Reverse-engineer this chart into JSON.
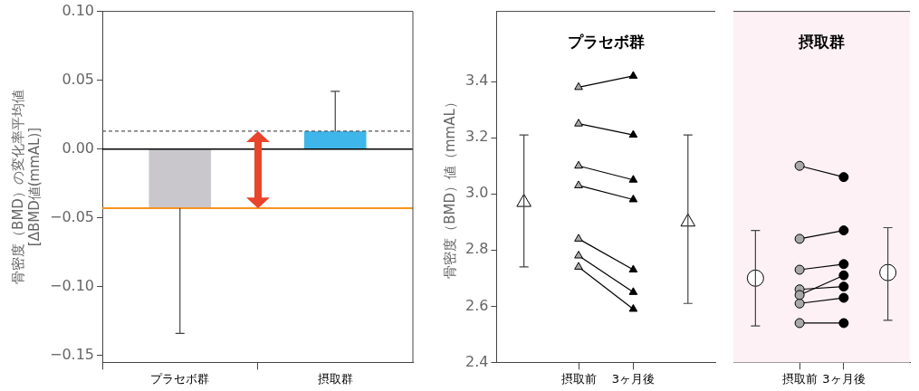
{
  "chart_data": [
    {
      "type": "bar",
      "ylabel": "骨密度（BMD）の変化率平均値\n[ΔBMD値(mmAL)]",
      "categories": [
        "プラセボ群",
        "摂取群"
      ],
      "values": [
        -0.043,
        0.013
      ],
      "colors": [
        "#c9c7cc",
        "#3fb6ea"
      ],
      "errors": [
        [
          -0.134,
          -0.043
        ],
        [
          0.013,
          0.042
        ]
      ],
      "ylim": [
        -0.155,
        0.1
      ],
      "yticks": [
        {
          "value": 0.1,
          "label": "0.10"
        },
        {
          "value": 0.05,
          "label": "0.05"
        },
        {
          "value": 0,
          "label": "0.00"
        },
        {
          "value": -0.05,
          "label": "−0.05"
        },
        {
          "value": -0.1,
          "label": "−0.10"
        },
        {
          "value": -0.15,
          "label": "−0.15"
        }
      ],
      "ref_lines": [
        {
          "axis": "y",
          "value": 0,
          "color": "#000000",
          "line_style": "solid"
        },
        {
          "axis": "y",
          "value": 0.013,
          "color": "#555555",
          "line_style": "dashed"
        },
        {
          "axis": "y",
          "value": -0.043,
          "color": "#f7931e",
          "line_style": "solid"
        }
      ]
    },
    {
      "type": "line",
      "title": "プラセボ群",
      "ylabel": "骨密度（BMD）値（mmAL）",
      "categories": [
        null,
        "摂取前",
        "3ヶ月後",
        null
      ],
      "ylim": [
        2.4,
        3.65
      ],
      "yticks": [
        {
          "value": 2.4,
          "label": "2.4"
        },
        {
          "value": 2.6,
          "label": "2.6"
        },
        {
          "value": 2.8,
          "label": "2.8"
        },
        {
          "value": 3.0,
          "label": "3.0"
        },
        {
          "value": 3.2,
          "label": "3.2"
        },
        {
          "value": 3.4,
          "label": "3.4"
        }
      ],
      "series": [
        {
          "type": "line",
          "marker": "triangle",
          "color": "#000000",
          "colors": [
            null,
            "#a8a8a8",
            "#000000",
            null
          ],
          "values": [
            null,
            3.38,
            3.42,
            null
          ]
        },
        {
          "type": "line",
          "marker": "triangle",
          "color": "#000000",
          "colors": [
            null,
            "#a8a8a8",
            "#000000",
            null
          ],
          "values": [
            null,
            3.25,
            3.21,
            null
          ]
        },
        {
          "type": "line",
          "marker": "triangle",
          "color": "#000000",
          "colors": [
            null,
            "#a8a8a8",
            "#000000",
            null
          ],
          "values": [
            null,
            3.1,
            3.05,
            null
          ]
        },
        {
          "type": "line",
          "marker": "triangle",
          "color": "#000000",
          "colors": [
            null,
            "#a8a8a8",
            "#000000",
            null
          ],
          "values": [
            null,
            3.03,
            2.98,
            null
          ]
        },
        {
          "type": "line",
          "marker": "triangle",
          "color": "#000000",
          "colors": [
            null,
            "#a8a8a8",
            "#000000",
            null
          ],
          "values": [
            null,
            2.84,
            2.73,
            null
          ]
        },
        {
          "type": "line",
          "marker": "triangle",
          "color": "#000000",
          "colors": [
            null,
            "#a8a8a8",
            "#000000",
            null
          ],
          "values": [
            null,
            2.78,
            2.65,
            null
          ]
        },
        {
          "type": "line",
          "marker": "triangle",
          "color": "#000000",
          "colors": [
            null,
            "#a8a8a8",
            "#000000",
            null
          ],
          "values": [
            null,
            2.74,
            2.59,
            null
          ]
        },
        {
          "type": "scatter",
          "marker": "triangle",
          "color": "#ffffff",
          "values": [
            2.97,
            null,
            null,
            2.9
          ],
          "errors": [
            [
              2.74,
              3.21
            ],
            null,
            null,
            [
              2.61,
              3.21
            ]
          ]
        }
      ]
    },
    {
      "type": "line",
      "title": "摂取群",
      "categories": [
        null,
        "摂取前",
        "3ヶ月後",
        null
      ],
      "tick_labels": "x",
      "ylim": [
        2.4,
        3.65
      ],
      "bands": [
        {
          "axis": "y",
          "from": 2.4,
          "to": 3.65,
          "color": "#fdf1f6"
        }
      ],
      "series": [
        {
          "type": "line",
          "marker": "circle",
          "color": "#000000",
          "colors": [
            null,
            "#a8a8a8",
            "#000000",
            null
          ],
          "values": [
            null,
            3.1,
            3.06,
            null
          ]
        },
        {
          "type": "line",
          "marker": "circle",
          "color": "#000000",
          "colors": [
            null,
            "#a8a8a8",
            "#000000",
            null
          ],
          "values": [
            null,
            2.84,
            2.87,
            null
          ]
        },
        {
          "type": "line",
          "marker": "circle",
          "color": "#000000",
          "colors": [
            null,
            "#a8a8a8",
            "#000000",
            null
          ],
          "values": [
            null,
            2.73,
            2.75,
            null
          ]
        },
        {
          "type": "line",
          "marker": "circle",
          "color": "#000000",
          "colors": [
            null,
            "#a8a8a8",
            "#000000",
            null
          ],
          "values": [
            null,
            2.64,
            2.71,
            null
          ]
        },
        {
          "type": "line",
          "marker": "circle",
          "color": "#000000",
          "colors": [
            null,
            "#a8a8a8",
            "#000000",
            null
          ],
          "values": [
            null,
            2.66,
            2.67,
            null
          ]
        },
        {
          "type": "line",
          "marker": "circle",
          "color": "#000000",
          "colors": [
            null,
            "#a8a8a8",
            "#000000",
            null
          ],
          "values": [
            null,
            2.61,
            2.63,
            null
          ]
        },
        {
          "type": "line",
          "marker": "circle",
          "color": "#000000",
          "colors": [
            null,
            "#a8a8a8",
            "#000000",
            null
          ],
          "values": [
            null,
            2.54,
            2.54,
            null
          ]
        },
        {
          "type": "scatter",
          "marker": "circle",
          "color": "#ffffff",
          "values": [
            2.7,
            null,
            null,
            2.72
          ],
          "errors": [
            [
              2.53,
              2.87
            ],
            null,
            null,
            [
              2.55,
              2.88
            ]
          ]
        }
      ]
    }
  ]
}
